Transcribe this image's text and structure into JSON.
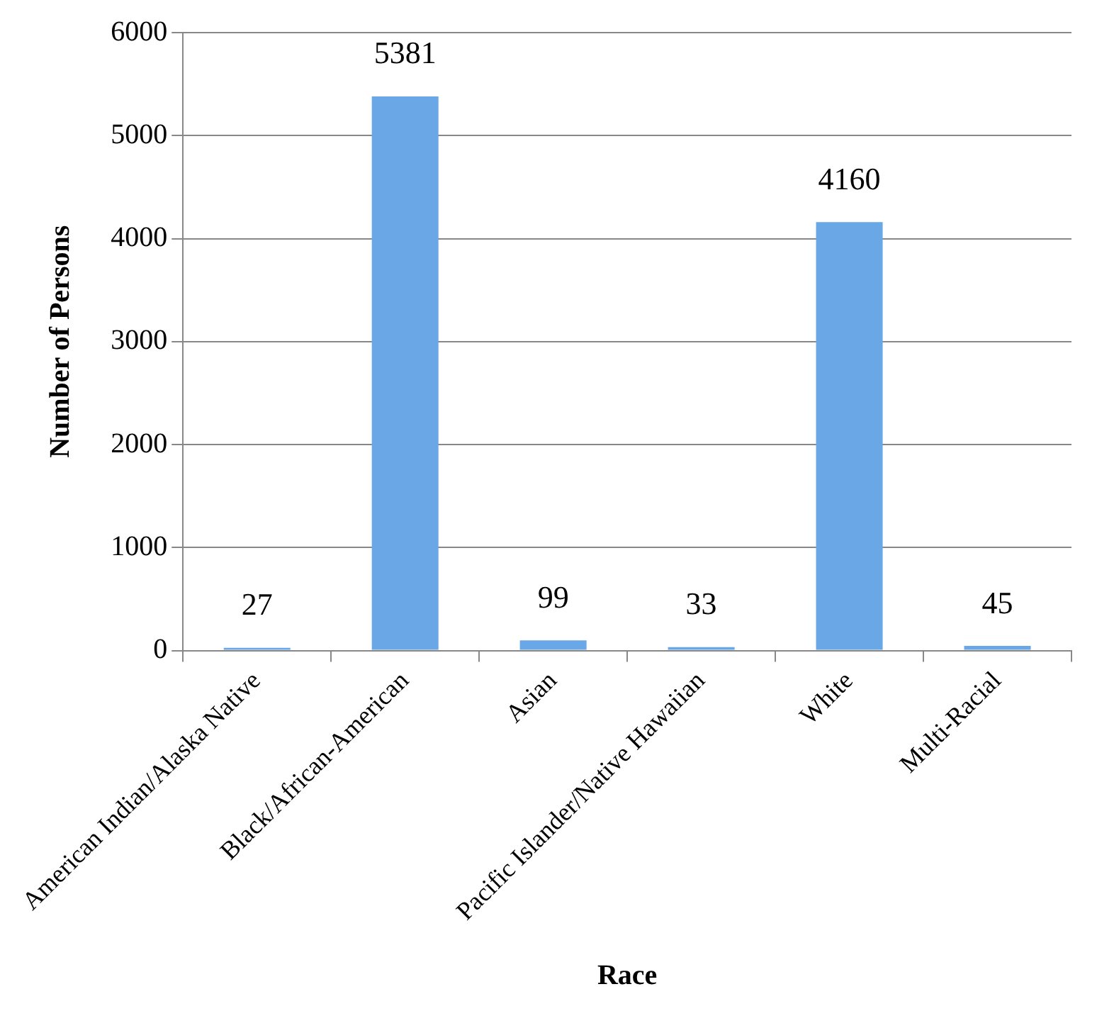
{
  "chart_data": {
    "type": "bar",
    "xlabel": "Race",
    "ylabel": "Number of Persons",
    "categories": [
      "American Indian/Alaska Native",
      "Black/African-American",
      "Asian",
      "Pacific Islander/Native Hawaiian",
      "White",
      "Multi-Racial"
    ],
    "values": [
      27,
      5381,
      99,
      33,
      4160,
      45
    ],
    "color": "#6aa7e6",
    "ylim": [
      0,
      6000
    ],
    "yticks": [
      0,
      1000,
      2000,
      3000,
      4000,
      5000,
      6000
    ],
    "grid": "y",
    "data_labels": true
  }
}
